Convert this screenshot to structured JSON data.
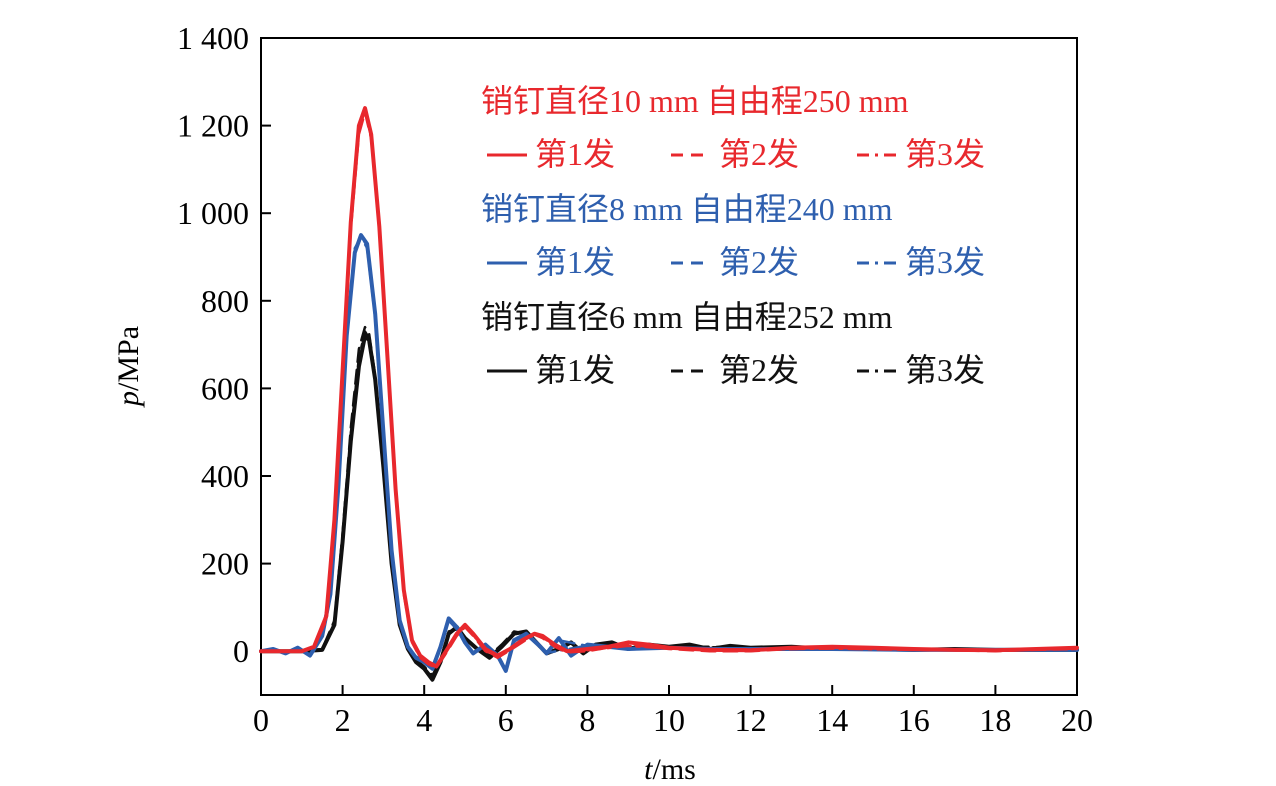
{
  "chart_data": {
    "type": "line",
    "xlabel": {
      "italic": "t",
      "unit": "/ms"
    },
    "ylabel": {
      "italic": "p",
      "unit": "/MPa"
    },
    "xlim": [
      0,
      20
    ],
    "ylim": [
      -100,
      1400
    ],
    "x_ticks": [
      "0",
      "2",
      "4",
      "6",
      "8",
      "10",
      "12",
      "14",
      "16",
      "18",
      "20"
    ],
    "y_ticks": [
      {
        "value": 0,
        "label": "0"
      },
      {
        "value": 200,
        "label": "200"
      },
      {
        "value": 400,
        "label": "400"
      },
      {
        "value": 600,
        "label": "600"
      },
      {
        "value": 800,
        "label": "800"
      },
      {
        "value": 1000,
        "label": "1 000"
      },
      {
        "value": 1200,
        "label": "1 200"
      },
      {
        "value": 1400,
        "label": "1 400"
      }
    ],
    "grid": false,
    "legend_placement": "top-right inside",
    "legend": [
      {
        "header": "销钉直径10 mm   自由程250 mm",
        "color": "#e8282d",
        "entries": [
          {
            "label": "第1发",
            "dash": "solid"
          },
          {
            "label": "第2发",
            "dash": "dashed"
          },
          {
            "label": "第3发",
            "dash": "dashdot"
          }
        ]
      },
      {
        "header": "销钉直径8 mm  自由程240 mm",
        "color": "#2e5fae",
        "entries": [
          {
            "label": "第1发",
            "dash": "solid"
          },
          {
            "label": "第2发",
            "dash": "dashed"
          },
          {
            "label": "第3发",
            "dash": "dashdot"
          }
        ]
      },
      {
        "header": "销钉直径6 mm  自由程252 mm",
        "color": "#111111",
        "entries": [
          {
            "label": "第1发",
            "dash": "solid"
          },
          {
            "label": "第2发",
            "dash": "dashed"
          },
          {
            "label": "第3发",
            "dash": "dashdot"
          }
        ]
      }
    ],
    "series": [
      {
        "group": 2,
        "shot": 1,
        "color": "#111111",
        "dash": "solid",
        "width": 4,
        "x": [
          0,
          0.5,
          1.0,
          1.5,
          1.8,
          2.0,
          2.2,
          2.4,
          2.55,
          2.65,
          2.8,
          3.0,
          3.2,
          3.4,
          3.6,
          3.8,
          4.0,
          4.2,
          4.4,
          4.6,
          4.8,
          5.0,
          5.3,
          5.6,
          5.9,
          6.2,
          6.5,
          6.8,
          7.0,
          7.3,
          7.6,
          7.9,
          8.2,
          8.6,
          9.0,
          9.5,
          10.0,
          10.5,
          11.0,
          11.5,
          12.0,
          13.0,
          14.0,
          15.0,
          16.0,
          17.0,
          18.0,
          19.0,
          20.0
        ],
        "y": [
          0,
          0,
          0,
          3,
          60,
          250,
          480,
          650,
          720,
          710,
          620,
          420,
          200,
          60,
          5,
          -25,
          -40,
          -65,
          -25,
          40,
          55,
          30,
          5,
          -15,
          10,
          40,
          45,
          15,
          -5,
          5,
          20,
          -5,
          15,
          20,
          5,
          15,
          10,
          15,
          5,
          12,
          8,
          10,
          5,
          5,
          3,
          5,
          3,
          3,
          3
        ]
      },
      {
        "group": 2,
        "shot": 2,
        "color": "#111111",
        "dash": "dashed",
        "width": 2.5,
        "x": [
          0,
          0.5,
          1.0,
          1.5,
          1.8,
          2.0,
          2.2,
          2.4,
          2.55,
          2.65,
          2.8,
          3.0,
          3.2,
          3.4,
          3.6,
          3.8,
          4.0,
          4.2,
          4.4,
          4.6,
          4.8,
          5.0,
          5.3,
          5.6,
          5.9,
          6.2,
          6.5,
          6.8,
          7.0,
          7.3,
          7.6,
          7.9,
          8.2,
          8.6,
          9.0,
          9.5,
          10.0,
          11.0,
          12.0,
          14.0,
          16.0,
          18.0,
          20.0
        ],
        "y": [
          0,
          0,
          0,
          5,
          70,
          270,
          510,
          690,
          740,
          725,
          630,
          430,
          210,
          65,
          8,
          -20,
          -35,
          -55,
          -20,
          45,
          50,
          25,
          8,
          -10,
          15,
          45,
          40,
          12,
          -5,
          8,
          18,
          -2,
          12,
          18,
          8,
          12,
          10,
          10,
          8,
          6,
          4,
          3,
          3
        ]
      },
      {
        "group": 2,
        "shot": 3,
        "color": "#111111",
        "dash": "dashdot",
        "width": 2.5,
        "x": [
          0,
          0.5,
          1.0,
          1.5,
          1.8,
          2.0,
          2.2,
          2.4,
          2.55,
          2.65,
          2.8,
          3.0,
          3.2,
          3.4,
          3.6,
          3.8,
          4.0,
          4.2,
          4.4,
          4.6,
          4.8,
          5.0,
          5.3,
          5.6,
          5.9,
          6.2,
          6.5,
          6.8,
          7.0,
          7.3,
          7.6,
          7.9,
          8.2,
          9.0,
          10.0,
          12.0,
          14.0,
          16.0,
          18.0,
          20.0
        ],
        "y": [
          0,
          0,
          0,
          4,
          65,
          260,
          495,
          670,
          730,
          715,
          625,
          425,
          205,
          62,
          6,
          -22,
          -38,
          -60,
          -22,
          42,
          52,
          28,
          6,
          -12,
          12,
          42,
          42,
          14,
          -5,
          6,
          19,
          -3,
          14,
          10,
          10,
          8,
          6,
          4,
          3,
          3
        ]
      },
      {
        "group": 1,
        "shot": 1,
        "color": "#2e5fae",
        "dash": "solid",
        "width": 4,
        "x": [
          0,
          0.3,
          0.6,
          0.9,
          1.2,
          1.5,
          1.7,
          1.9,
          2.1,
          2.3,
          2.45,
          2.6,
          2.8,
          3.0,
          3.2,
          3.4,
          3.6,
          3.8,
          4.0,
          4.2,
          4.4,
          4.6,
          4.8,
          5.0,
          5.2,
          5.5,
          5.8,
          6.0,
          6.2,
          6.5,
          6.8,
          7.0,
          7.3,
          7.6,
          8.0,
          8.5,
          9.0,
          10.0,
          11.0,
          12.0,
          13.0,
          14.0,
          16.0,
          18.0,
          20.0
        ],
        "y": [
          0,
          5,
          -5,
          8,
          -10,
          35,
          130,
          380,
          720,
          910,
          950,
          930,
          770,
          500,
          230,
          70,
          10,
          -15,
          -25,
          -40,
          10,
          75,
          55,
          20,
          -5,
          15,
          -10,
          -45,
          25,
          40,
          15,
          -5,
          30,
          -10,
          15,
          10,
          5,
          8,
          5,
          5,
          5,
          5,
          3,
          3,
          3
        ]
      },
      {
        "group": 1,
        "shot": 2,
        "color": "#2e5fae",
        "dash": "dashed",
        "width": 2.5,
        "x": [
          0,
          0.3,
          0.6,
          0.9,
          1.2,
          1.5,
          1.7,
          1.9,
          2.1,
          2.3,
          2.45,
          2.6,
          2.8,
          3.0,
          3.2,
          3.4,
          3.6,
          3.8,
          4.0,
          4.2,
          4.4,
          4.6,
          4.8,
          5.0,
          5.2,
          5.5,
          5.8,
          6.0,
          6.2,
          6.5,
          6.8,
          7.0,
          7.3,
          8.0,
          9.0,
          10.0,
          12.0,
          14.0,
          16.0,
          18.0,
          20.0
        ],
        "y": [
          0,
          3,
          -3,
          6,
          -8,
          40,
          140,
          395,
          730,
          920,
          945,
          920,
          760,
          490,
          225,
          68,
          12,
          -12,
          -22,
          -35,
          12,
          70,
          50,
          18,
          -3,
          12,
          -8,
          -40,
          22,
          38,
          12,
          -3,
          25,
          12,
          6,
          8,
          5,
          5,
          3,
          3,
          3
        ]
      },
      {
        "group": 1,
        "shot": 3,
        "color": "#2e5fae",
        "dash": "dashdot",
        "width": 2.5,
        "x": [
          0,
          0.3,
          0.6,
          0.9,
          1.2,
          1.5,
          1.7,
          1.9,
          2.1,
          2.3,
          2.45,
          2.6,
          2.8,
          3.0,
          3.2,
          3.4,
          3.6,
          3.8,
          4.0,
          4.2,
          4.4,
          4.6,
          4.8,
          5.0,
          5.2,
          5.5,
          5.8,
          6.0,
          6.2,
          6.5,
          6.8,
          7.0,
          8.0,
          9.0,
          10.0,
          12.0,
          14.0,
          16.0,
          18.0,
          20.0
        ],
        "y": [
          0,
          4,
          -4,
          7,
          -9,
          38,
          135,
          388,
          725,
          915,
          948,
          925,
          765,
          495,
          228,
          69,
          11,
          -13,
          -23,
          -38,
          11,
          72,
          52,
          19,
          -4,
          13,
          -9,
          -42,
          23,
          39,
          13,
          -4,
          13,
          7,
          8,
          5,
          5,
          3,
          3,
          3
        ]
      },
      {
        "group": 0,
        "shot": 2,
        "color": "#e8282d",
        "dash": "dashed",
        "width": 2.5,
        "x": [
          0,
          0.5,
          1.0,
          1.3,
          1.6,
          1.8,
          2.0,
          2.2,
          2.4,
          2.55,
          2.7,
          2.9,
          3.1,
          3.3,
          3.5,
          3.7,
          3.9,
          4.1,
          4.3,
          4.5,
          4.8,
          5.0,
          5.2,
          5.5,
          5.8,
          6.1,
          6.4,
          6.7,
          6.9,
          7.2,
          7.5,
          8.0,
          8.5,
          9.0,
          9.5,
          10.0,
          11.0,
          12.0,
          13.0,
          14.0,
          15.0,
          16.0,
          17.0,
          18.0,
          19.0,
          20.0
        ],
        "y": [
          0,
          0,
          0,
          8,
          70,
          280,
          620,
          960,
          1180,
          1230,
          1170,
          960,
          660,
          360,
          130,
          20,
          -15,
          -30,
          -38,
          -10,
          35,
          55,
          35,
          0,
          -15,
          2,
          20,
          38,
          30,
          10,
          -3,
          0,
          8,
          15,
          10,
          5,
          0,
          0,
          5,
          8,
          5,
          3,
          2,
          0,
          3,
          5
        ]
      },
      {
        "group": 0,
        "shot": 3,
        "color": "#e8282d",
        "dash": "dashdot",
        "width": 2.5,
        "x": [
          0,
          0.5,
          1.0,
          1.3,
          1.6,
          1.8,
          2.0,
          2.2,
          2.4,
          2.55,
          2.7,
          2.9,
          3.1,
          3.3,
          3.5,
          3.7,
          3.9,
          4.1,
          4.3,
          4.5,
          4.8,
          5.0,
          5.2,
          5.5,
          5.8,
          6.1,
          6.4,
          6.7,
          6.9,
          7.2,
          7.5,
          8.0,
          9.0,
          10.0,
          12.0,
          14.0,
          16.0,
          18.0,
          20.0
        ],
        "y": [
          0,
          0,
          0,
          9,
          75,
          290,
          630,
          970,
          1190,
          1235,
          1175,
          965,
          665,
          365,
          135,
          22,
          -13,
          -28,
          -36,
          -8,
          38,
          57,
          37,
          2,
          -13,
          4,
          22,
          40,
          32,
          12,
          -1,
          2,
          12,
          6,
          4,
          6,
          3,
          2,
          5
        ]
      },
      {
        "group": 0,
        "shot": 1,
        "color": "#e8282d",
        "dash": "solid",
        "width": 4,
        "x": [
          0,
          0.5,
          1.0,
          1.3,
          1.6,
          1.8,
          2.0,
          2.2,
          2.4,
          2.55,
          2.7,
          2.9,
          3.1,
          3.3,
          3.5,
          3.7,
          3.9,
          4.1,
          4.3,
          4.5,
          4.8,
          5.0,
          5.2,
          5.5,
          5.8,
          6.1,
          6.4,
          6.7,
          6.9,
          7.2,
          7.5,
          8.0,
          8.5,
          9.0,
          9.5,
          10.0,
          11.0,
          12.0,
          13.0,
          14.0,
          15.0,
          16.0,
          17.0,
          18.0,
          19.0,
          20.0
        ],
        "y": [
          0,
          0,
          0,
          10,
          80,
          300,
          640,
          980,
          1200,
          1240,
          1180,
          970,
          670,
          370,
          140,
          25,
          -10,
          -25,
          -35,
          -5,
          40,
          60,
          40,
          5,
          -10,
          5,
          25,
          40,
          35,
          15,
          0,
          5,
          10,
          20,
          15,
          8,
          3,
          2,
          8,
          10,
          8,
          5,
          3,
          2,
          5,
          8
        ]
      }
    ]
  }
}
